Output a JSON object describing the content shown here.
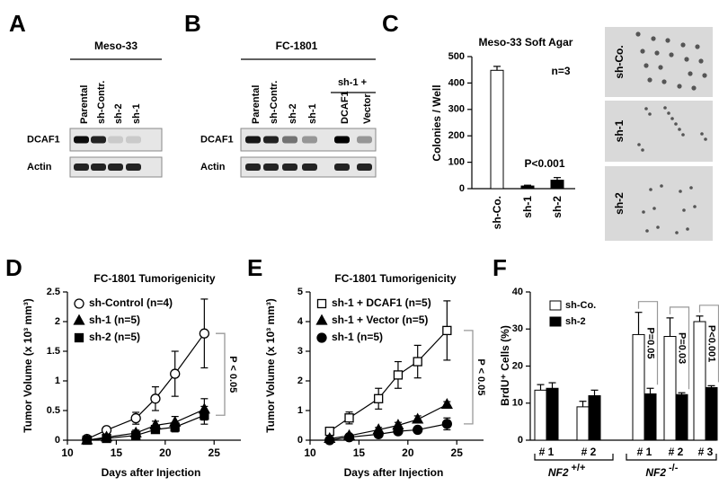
{
  "panel_labels": [
    "A",
    "B",
    "C",
    "D",
    "E",
    "F"
  ],
  "blot_a": {
    "title": "Meso-33",
    "lanes": [
      "Parental",
      "sh-Contr.",
      "sh-2",
      "sh-1"
    ],
    "rows": [
      "DCAF1",
      "Actin"
    ]
  },
  "blot_b": {
    "title": "FC-1801",
    "group_label": "sh-1 +",
    "lanes": [
      "Parental",
      "sh-Contr.",
      "sh-2",
      "sh-1",
      "DCAF1",
      "Vector"
    ],
    "rows": [
      "DCAF1",
      "Actin"
    ]
  },
  "micrographs": {
    "labels": [
      "sh-Co.",
      "sh-1",
      "sh-2"
    ]
  },
  "chart_data": [
    {
      "type": "bar",
      "title": "Meso-33 Soft Agar",
      "y_label": "Colonies / Well",
      "categories": [
        "sh-Co.",
        "sh-1",
        "sh-2"
      ],
      "values": [
        448,
        10,
        32
      ],
      "errors": [
        15,
        3,
        10
      ],
      "colors": [
        "#ffffff",
        "#000000",
        "#000000"
      ],
      "ylim": [
        0,
        500
      ],
      "yticks": [
        0,
        100,
        200,
        300,
        400,
        500
      ],
      "annotations": [
        "n=3",
        "P<0.001"
      ]
    },
    {
      "type": "line",
      "title": "FC-1801 Tumorigenicity",
      "y_label": "Tumor Volume (x 10³ mm³)",
      "x_label": "Days after Injection",
      "x": [
        12,
        14,
        17,
        19,
        21,
        24
      ],
      "xlim": [
        10,
        27
      ],
      "xticks": [
        10,
        15,
        20,
        25
      ],
      "ylim": [
        0,
        2.5
      ],
      "yticks": [
        0,
        0.5,
        1,
        1.5,
        2,
        2.5
      ],
      "series": [
        {
          "name": "sh-Control (n=4)",
          "marker": "circle-open",
          "color": "#000000",
          "values": [
            0.02,
            0.17,
            0.37,
            0.7,
            1.12,
            1.8
          ],
          "errors": [
            0.03,
            0.05,
            0.1,
            0.2,
            0.38,
            0.58
          ]
        },
        {
          "name": "sh-1 (n=5)",
          "marker": "triangle",
          "color": "#000000",
          "values": [
            0,
            0.05,
            0.12,
            0.25,
            0.3,
            0.52
          ],
          "errors": [
            0.02,
            0.03,
            0.05,
            0.07,
            0.1,
            0.18
          ]
        },
        {
          "name": "sh-2 (n=5)",
          "marker": "square",
          "color": "#000000",
          "values": [
            0,
            0.03,
            0.08,
            0.18,
            0.22,
            0.42
          ],
          "errors": [
            0.02,
            0.02,
            0.04,
            0.06,
            0.08,
            0.15
          ]
        }
      ],
      "annotation": "P < 0.05"
    },
    {
      "type": "line",
      "title": "FC-1801 Tumorigenicity",
      "y_label": "Tumor Volume (x 10³ mm³)",
      "x_label": "Days after Injection",
      "x": [
        12,
        14,
        17,
        19,
        21,
        24
      ],
      "xlim": [
        10,
        27
      ],
      "xticks": [
        10,
        15,
        20,
        25
      ],
      "ylim": [
        0,
        5
      ],
      "yticks": [
        0,
        1,
        2,
        3,
        4,
        5
      ],
      "series": [
        {
          "name": "sh-1 + DCAF1 (n=5)",
          "marker": "square-open",
          "color": "#000000",
          "values": [
            0.3,
            0.75,
            1.4,
            2.2,
            2.65,
            3.7
          ],
          "errors": [
            0.1,
            0.2,
            0.35,
            0.45,
            0.55,
            1.0
          ]
        },
        {
          "name": "sh-1 + Vector (n=5)",
          "marker": "triangle",
          "color": "#000000",
          "values": [
            0.05,
            0.15,
            0.35,
            0.5,
            0.7,
            1.2
          ],
          "errors": [
            0.03,
            0.05,
            0.08,
            0.1,
            0.12,
            0.1
          ]
        },
        {
          "name": "sh-1 (n=5)",
          "marker": "circle",
          "color": "#000000",
          "values": [
            0,
            0.1,
            0.2,
            0.3,
            0.35,
            0.55
          ],
          "errors": [
            0.02,
            0.04,
            0.05,
            0.06,
            0.08,
            0.2
          ]
        }
      ],
      "annotation": "P < 0.05"
    },
    {
      "type": "bar",
      "y_label": "BrdU⁺ Cells (%)",
      "categories": [
        "# 1",
        "# 2",
        "# 1",
        "# 2",
        "# 3"
      ],
      "series": [
        {
          "name": "sh-Co.",
          "color": "#ffffff",
          "values": [
            13.5,
            9,
            28.5,
            28,
            32
          ],
          "errors": [
            1.5,
            1.5,
            6,
            5,
            1.5
          ]
        },
        {
          "name": "sh-2",
          "color": "#000000",
          "values": [
            14,
            12,
            12.5,
            12.3,
            14.2
          ],
          "errors": [
            1.5,
            1.5,
            1.5,
            0.5,
            0.5
          ]
        }
      ],
      "ylim": [
        0,
        40
      ],
      "yticks": [
        0,
        10,
        20,
        30,
        40
      ],
      "groups": [
        {
          "gene": "NF2",
          "genotype": "+/+"
        },
        {
          "gene": "NF2",
          "genotype": "-/-"
        }
      ],
      "annotations": [
        "P=0.05",
        "P=0.03",
        "P<0.001"
      ]
    }
  ]
}
